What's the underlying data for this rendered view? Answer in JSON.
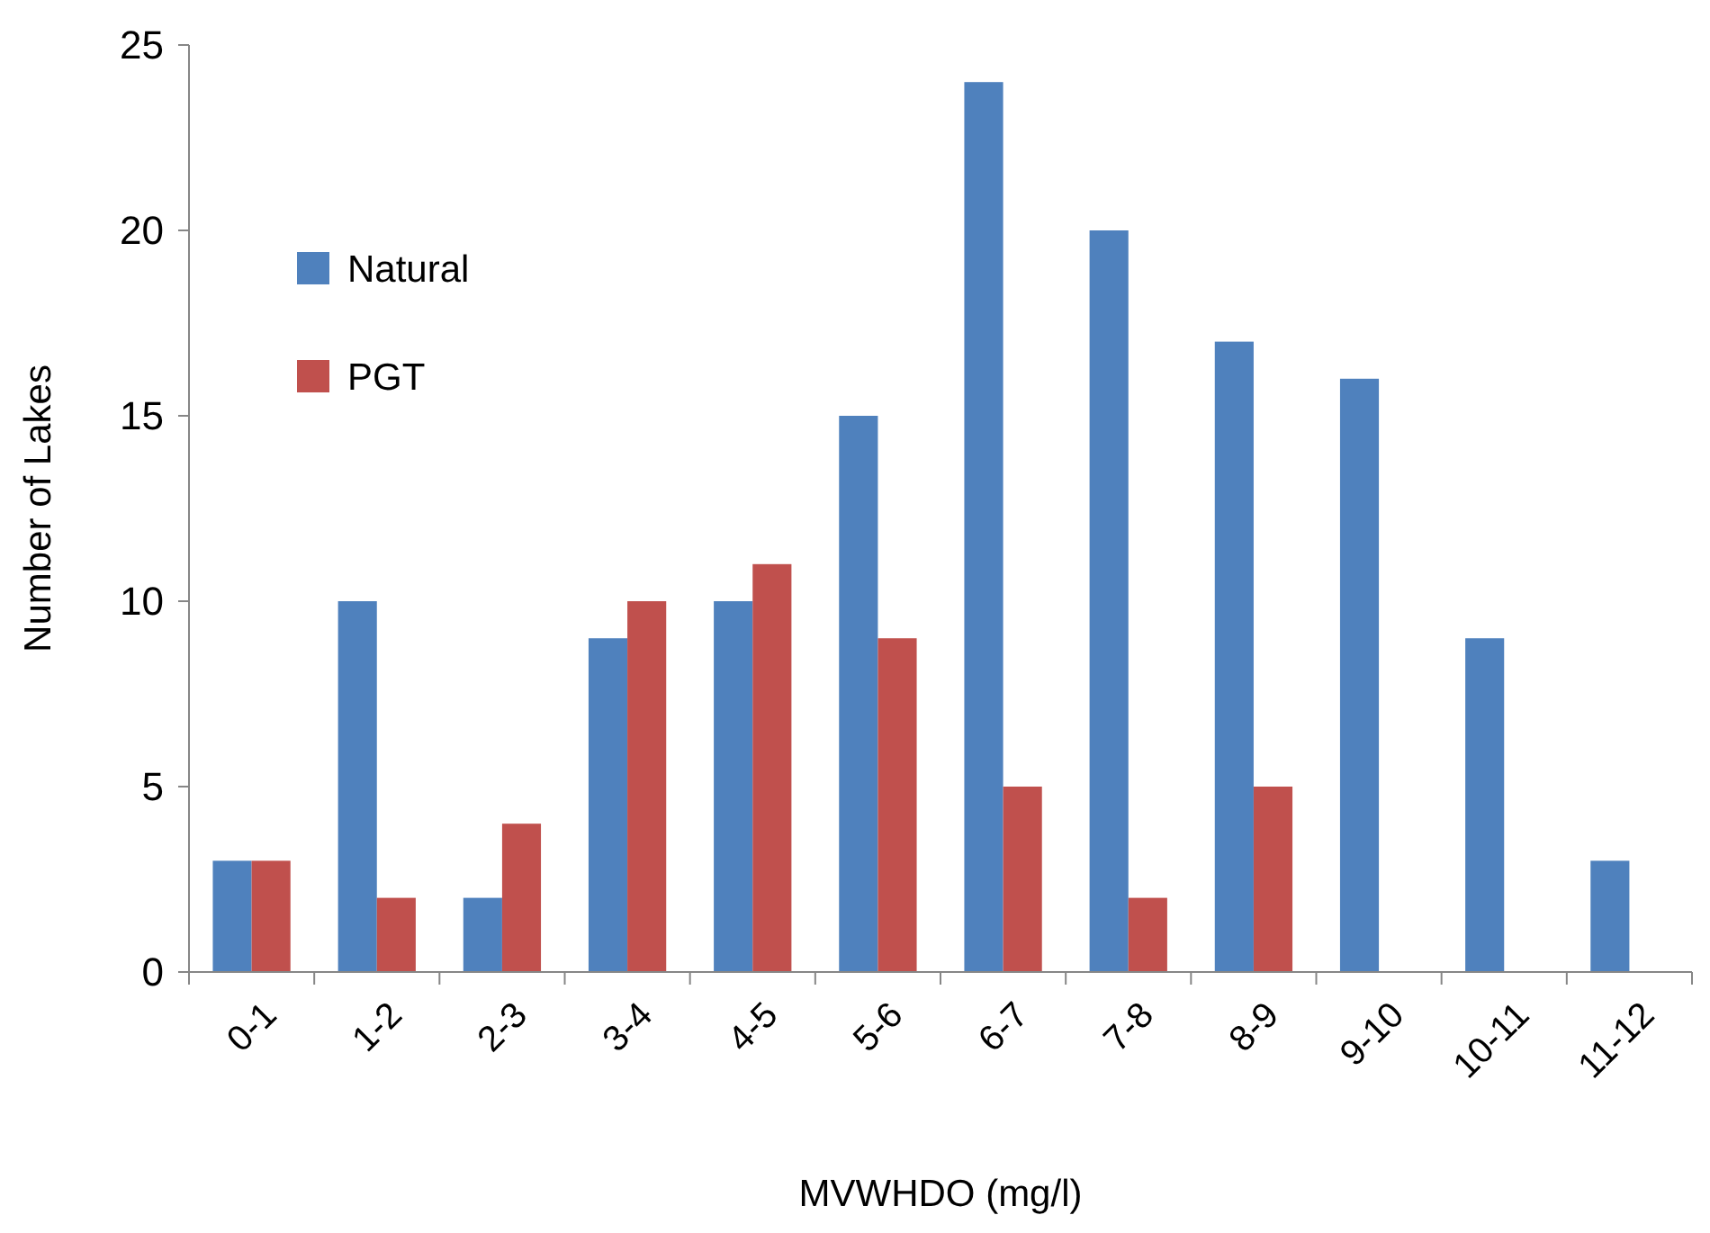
{
  "chart_data": {
    "type": "bar",
    "xlabel": "MVWHDO (mg/l)",
    "ylabel": "Number of Lakes",
    "categories": [
      "0-1",
      "1-2",
      "2-3",
      "3-4",
      "4-5",
      "5-6",
      "6-7",
      "7-8",
      "8-9",
      "9-10",
      "10-11",
      "11-12"
    ],
    "series": [
      {
        "name": "Natural",
        "color": "#4f81bd",
        "values": [
          3,
          10,
          2,
          9,
          10,
          15,
          24,
          20,
          17,
          16,
          9,
          3
        ]
      },
      {
        "name": "PGT",
        "color": "#c0504d",
        "values": [
          3,
          2,
          4,
          10,
          11,
          9,
          5,
          2,
          5,
          0,
          0,
          0
        ]
      }
    ],
    "ylim": [
      0,
      25
    ],
    "yticks": [
      0,
      5,
      10,
      15,
      20,
      25
    ],
    "grid": false,
    "legend": "top left"
  }
}
